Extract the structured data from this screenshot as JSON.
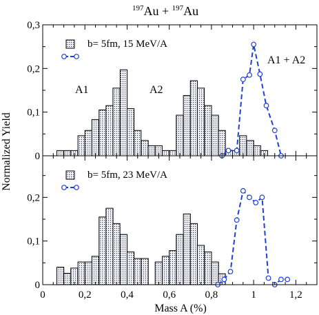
{
  "figure": {
    "title_sup": "197",
    "title_mid": "Au + ",
    "title_sup2": "197",
    "title_end": "Au",
    "xlabel": "Mass A (%)",
    "ylabel": "Normalized Yield"
  },
  "chart_data": [
    {
      "type": "bar",
      "panel": "top",
      "xlim": [
        0,
        1.3
      ],
      "ylim": [
        0,
        0.3
      ],
      "xticks": [
        0,
        0.2,
        0.4,
        0.6,
        0.8,
        1,
        1.2
      ],
      "yticks": [
        0,
        0.1,
        0.2,
        0.3
      ],
      "ytick_labels": [
        "0",
        "0,1",
        "0,2",
        "0,3"
      ],
      "legend_hist": "b= 5fm, 15 MeV/A",
      "labels": {
        "a1": "A1",
        "a2": "A2",
        "sum": "A1 + A2"
      },
      "bin_width": 0.0333,
      "histogram": [
        {
          "x": 0.067,
          "y": 0.012
        },
        {
          "x": 0.1,
          "y": 0.012
        },
        {
          "x": 0.133,
          "y": 0.012
        },
        {
          "x": 0.167,
          "y": 0.046
        },
        {
          "x": 0.2,
          "y": 0.058
        },
        {
          "x": 0.233,
          "y": 0.083
        },
        {
          "x": 0.267,
          "y": 0.105
        },
        {
          "x": 0.3,
          "y": 0.115
        },
        {
          "x": 0.333,
          "y": 0.155
        },
        {
          "x": 0.367,
          "y": 0.197
        },
        {
          "x": 0.4,
          "y": 0.108
        },
        {
          "x": 0.433,
          "y": 0.058
        },
        {
          "x": 0.467,
          "y": 0.035
        },
        {
          "x": 0.5,
          "y": 0.023
        },
        {
          "x": 0.533,
          "y": 0.023
        },
        {
          "x": 0.567,
          "y": 0.012
        },
        {
          "x": 0.6,
          "y": 0.012
        },
        {
          "x": 0.633,
          "y": 0.093
        },
        {
          "x": 0.667,
          "y": 0.138
        },
        {
          "x": 0.7,
          "y": 0.172
        },
        {
          "x": 0.733,
          "y": 0.155
        },
        {
          "x": 0.767,
          "y": 0.115
        },
        {
          "x": 0.8,
          "y": 0.093
        },
        {
          "x": 0.833,
          "y": 0.058
        },
        {
          "x": 0.867,
          "y": 0.012
        },
        {
          "x": 0.9,
          "y": 0.012
        },
        {
          "x": 0.933,
          "y": 0.046
        },
        {
          "x": 0.967,
          "y": 0.035
        },
        {
          "x": 1.0,
          "y": 0.023
        },
        {
          "x": 1.033,
          "y": 0.012
        }
      ],
      "series": [
        {
          "name": "A1 + A2",
          "x": [
            0.85,
            0.88,
            0.92,
            0.95,
            0.98,
            1.0,
            1.03,
            1.06,
            1.1,
            1.13
          ],
          "y": [
            0.0,
            0.012,
            0.012,
            0.175,
            0.185,
            0.255,
            0.187,
            0.115,
            0.058,
            0.0
          ]
        }
      ]
    },
    {
      "type": "bar",
      "panel": "bottom",
      "xlim": [
        0,
        1.3
      ],
      "ylim": [
        0,
        0.3
      ],
      "xticks": [
        0,
        0.2,
        0.4,
        0.6,
        0.8,
        1,
        1.2
      ],
      "xtick_labels": [
        "0",
        "0,2",
        "0,4",
        "0,6",
        "0,8",
        "1",
        "1,2"
      ],
      "yticks": [
        0,
        0.1,
        0.2
      ],
      "ytick_labels": [
        "0",
        "0,1",
        "0,2"
      ],
      "legend_hist": "b= 5fm, 23 MeV/A",
      "bin_width": 0.0333,
      "histogram": [
        {
          "x": 0.067,
          "y": 0.04
        },
        {
          "x": 0.1,
          "y": 0.026
        },
        {
          "x": 0.133,
          "y": 0.038
        },
        {
          "x": 0.167,
          "y": 0.052
        },
        {
          "x": 0.2,
          "y": 0.052
        },
        {
          "x": 0.233,
          "y": 0.065
        },
        {
          "x": 0.267,
          "y": 0.155
        },
        {
          "x": 0.3,
          "y": 0.175
        },
        {
          "x": 0.333,
          "y": 0.14
        },
        {
          "x": 0.367,
          "y": 0.115
        },
        {
          "x": 0.4,
          "y": 0.075
        },
        {
          "x": 0.433,
          "y": 0.06
        },
        {
          "x": 0.467,
          "y": 0.06
        },
        {
          "x": 0.5,
          "y": 0.0
        },
        {
          "x": 0.533,
          "y": 0.052
        },
        {
          "x": 0.567,
          "y": 0.065
        },
        {
          "x": 0.6,
          "y": 0.078
        },
        {
          "x": 0.633,
          "y": 0.115
        },
        {
          "x": 0.667,
          "y": 0.162
        },
        {
          "x": 0.7,
          "y": 0.14
        },
        {
          "x": 0.733,
          "y": 0.09
        },
        {
          "x": 0.767,
          "y": 0.075
        },
        {
          "x": 0.8,
          "y": 0.052
        },
        {
          "x": 0.833,
          "y": 0.025
        }
      ],
      "series": [
        {
          "name": "",
          "x": [
            0.83,
            0.86,
            0.89,
            0.92,
            0.95,
            0.98,
            1.01,
            1.04,
            1.07,
            1.1,
            1.13,
            1.16
          ],
          "y": [
            0.0,
            0.012,
            0.03,
            0.148,
            0.215,
            0.2,
            0.188,
            0.2,
            0.015,
            0.0,
            0.012,
            0.012
          ]
        }
      ]
    }
  ]
}
